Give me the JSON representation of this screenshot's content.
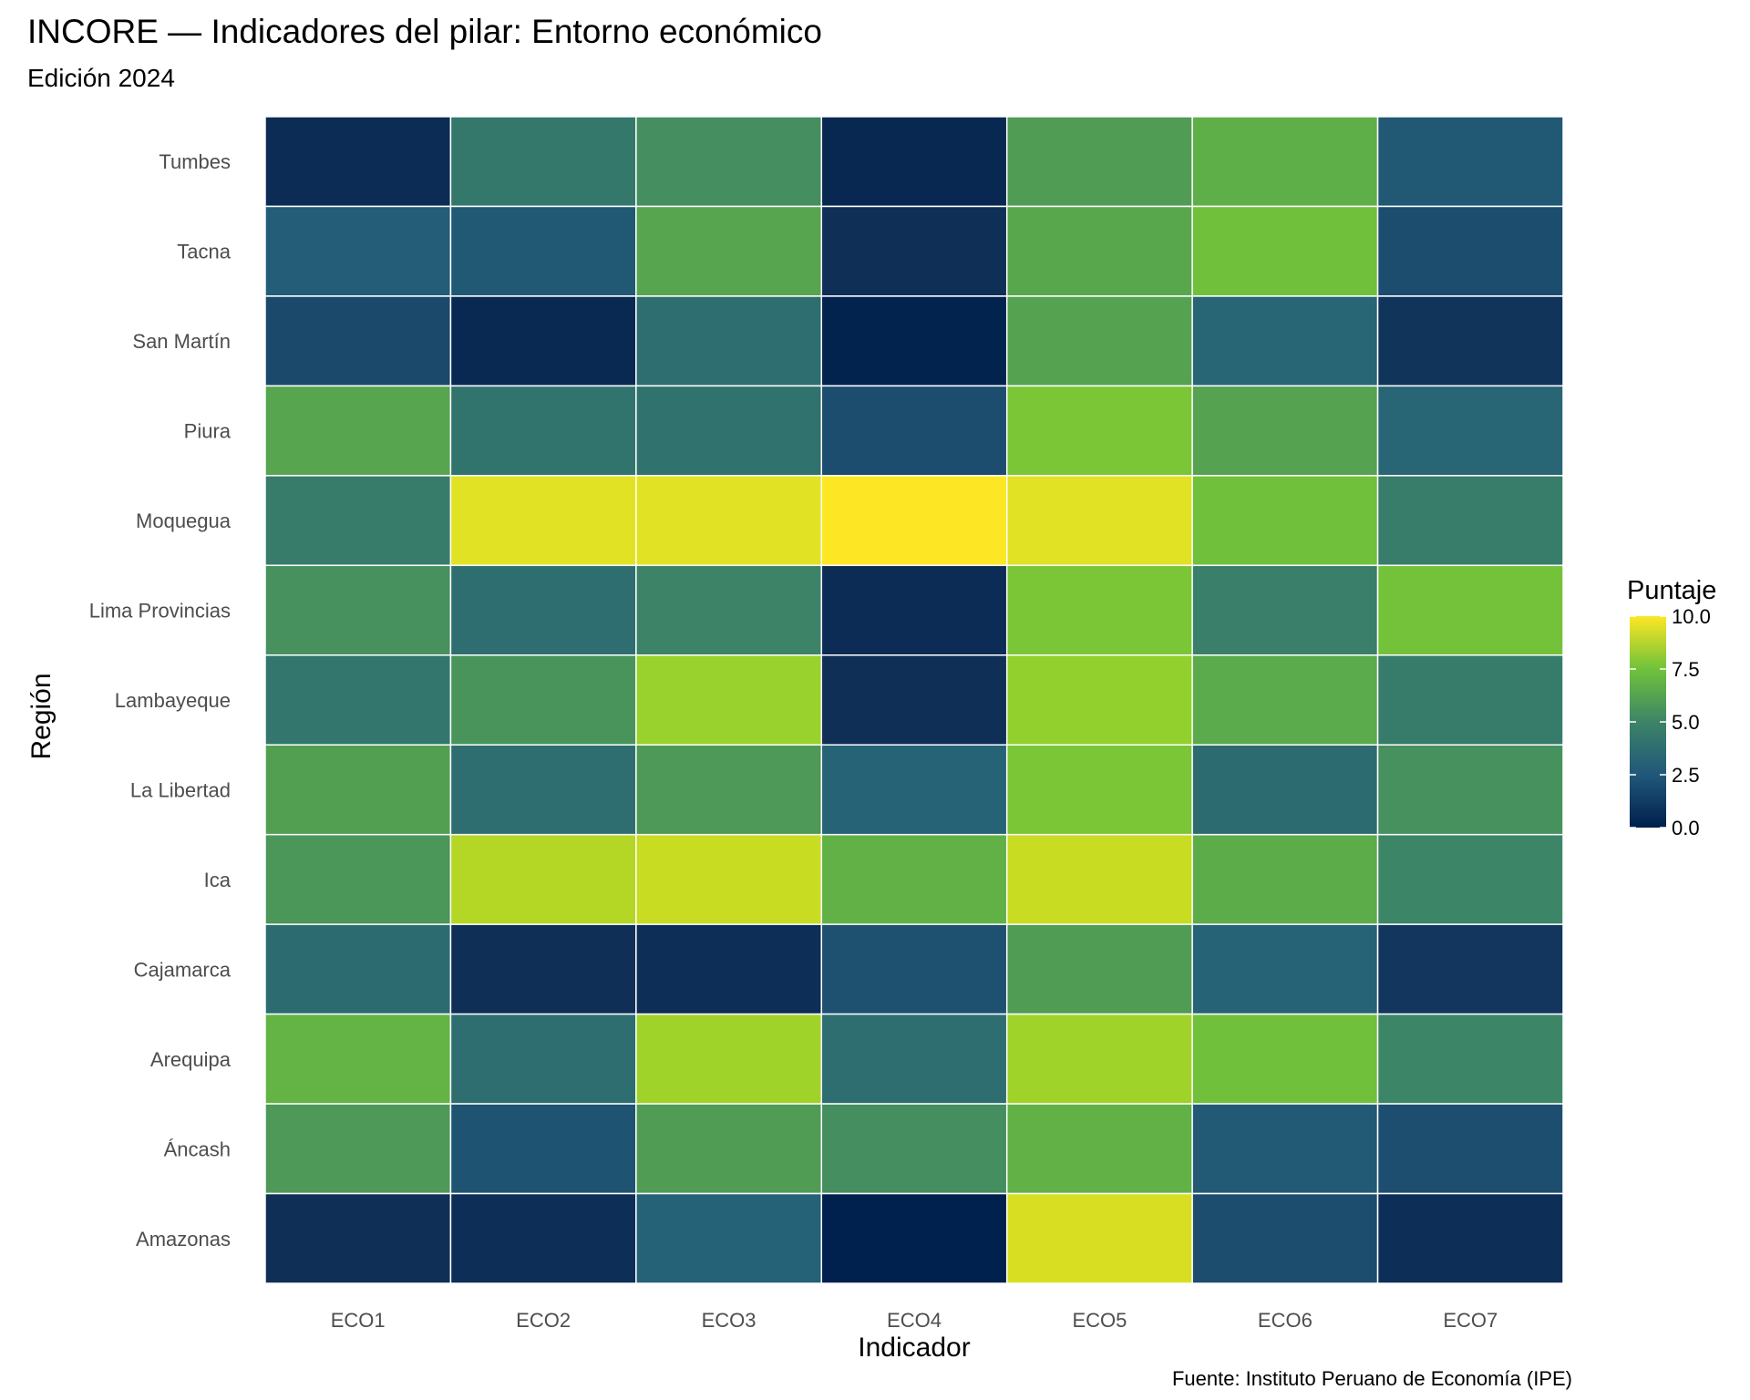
{
  "title": "INCORE — Indicadores del pilar: Entorno económico",
  "subtitle": "Edición 2024",
  "caption": "Fuente: Instituto Peruano de Economía (IPE)",
  "chart_data": {
    "type": "heatmap",
    "title": "INCORE — Indicadores del pilar: Entorno económico",
    "subtitle": "Edición 2024",
    "xlabel": "Indicador",
    "ylabel": "Región",
    "x_categories": [
      "ECO1",
      "ECO2",
      "ECO3",
      "ECO4",
      "ECO5",
      "ECO6",
      "ECO7"
    ],
    "y_categories": [
      "Tumbes",
      "Tacna",
      "San Martín",
      "Piura",
      "Moquegua",
      "Lima Provincias",
      "Lambayeque",
      "La Libertad",
      "Ica",
      "Cajamarca",
      "Arequipa",
      "Áncash",
      "Amazonas"
    ],
    "values": [
      [
        0.8,
        4.3,
        5.3,
        0.5,
        5.8,
        6.5,
        2.7
      ],
      [
        2.9,
        2.7,
        6.1,
        1.0,
        6.2,
        7.3,
        2.2
      ],
      [
        2.1,
        0.6,
        3.8,
        0.2,
        6.0,
        3.3,
        1.2
      ],
      [
        6.1,
        4.1,
        4.0,
        2.2,
        7.6,
        6.0,
        3.3
      ],
      [
        4.5,
        9.5,
        9.5,
        10.0,
        9.5,
        7.3,
        4.6
      ],
      [
        5.4,
        3.8,
        4.9,
        0.8,
        7.6,
        4.7,
        7.4
      ],
      [
        4.2,
        5.5,
        8.3,
        1.0,
        8.2,
        6.3,
        4.5
      ],
      [
        5.9,
        3.8,
        5.7,
        3.2,
        7.6,
        3.7,
        5.4
      ],
      [
        5.6,
        8.7,
        9.0,
        6.6,
        9.0,
        6.4,
        5.0
      ],
      [
        3.7,
        1.0,
        0.9,
        2.4,
        5.8,
        3.2,
        1.3
      ],
      [
        6.7,
        3.8,
        8.4,
        3.8,
        8.4,
        7.3,
        5.0
      ],
      [
        5.7,
        2.5,
        5.8,
        5.3,
        6.6,
        2.8,
        2.3
      ],
      [
        1.0,
        0.9,
        3.1,
        0.0,
        9.3,
        2.2,
        0.9
      ]
    ],
    "colorbar": {
      "title": "Puntaje",
      "range": [
        0,
        10
      ],
      "ticks": [
        0.0,
        2.5,
        5.0,
        7.5,
        10.0
      ],
      "tick_labels": [
        "0.0",
        "2.5",
        "5.0",
        "7.5",
        "10.0"
      ],
      "palette": "viridis (cividis-like start)"
    },
    "legend_position": "right",
    "grid": false
  }
}
